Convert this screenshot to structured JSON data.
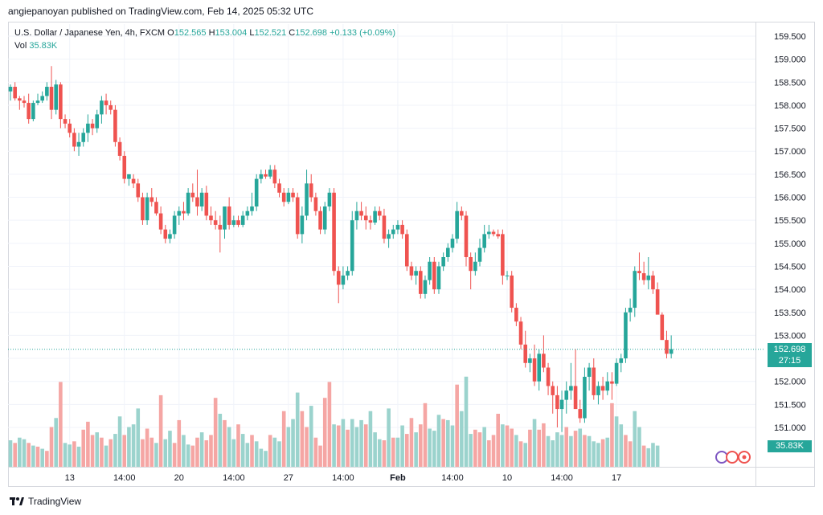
{
  "header": {
    "text": "angiepanoyan published on TradingView.com, Feb 14, 2025 05:32 UTC"
  },
  "legend": {
    "symbol": "U.S. Dollar / Japanese Yen, 4h, FXCM",
    "o_label": "O",
    "o_value": "152.565",
    "h_label": "H",
    "h_value": "153.004",
    "l_label": "L",
    "l_value": "152.521",
    "c_label": "C",
    "c_value": "152.698",
    "change": "+0.133 (+0.09%)",
    "vol_label": "Vol",
    "vol_value": "35.83K"
  },
  "price_tag": {
    "price": "152.698",
    "countdown": "27:15"
  },
  "vol_tag": "35.83K",
  "footer": {
    "brand": "TradingView"
  },
  "colors": {
    "up": "#26a69a",
    "down": "#ef5350",
    "vol_up": "#9bd3cd",
    "vol_down": "#f5a6a4",
    "grid": "#f0f3fa",
    "text": "#131722"
  },
  "chart_data": {
    "type": "candlestick",
    "title": "U.S. Dollar / Japanese Yen, 4h, FXCM",
    "y_axis": {
      "min": 150.5,
      "max": 159.75,
      "ticks": [
        "159.500",
        "159.000",
        "158.500",
        "158.000",
        "157.500",
        "157.000",
        "156.500",
        "156.000",
        "155.500",
        "155.000",
        "154.500",
        "154.000",
        "153.500",
        "153.000",
        "152.500",
        "152.000",
        "151.500",
        "151.000"
      ]
    },
    "x_ticks": [
      {
        "label": "13",
        "index": 13
      },
      {
        "label": "14:00",
        "index": 25
      },
      {
        "label": "20",
        "index": 37
      },
      {
        "label": "14:00",
        "index": 49
      },
      {
        "label": "27",
        "index": 61
      },
      {
        "label": "14:00",
        "index": 73
      },
      {
        "label": "Feb",
        "index": 85
      },
      {
        "label": "14:00",
        "index": 97
      },
      {
        "label": "10",
        "index": 109
      },
      {
        "label": "14:00",
        "index": 121
      },
      {
        "label": "17",
        "index": 133
      }
    ],
    "last_price": 152.698,
    "candles": [
      [
        158.3,
        158.45,
        158.1,
        158.4
      ],
      [
        158.4,
        158.5,
        158.1,
        158.15
      ],
      [
        158.15,
        158.2,
        157.9,
        158.1
      ],
      [
        158.1,
        158.2,
        157.95,
        158.05
      ],
      [
        158.05,
        158.25,
        157.6,
        157.7
      ],
      [
        157.7,
        158.1,
        157.65,
        158.05
      ],
      [
        158.05,
        158.25,
        158.0,
        158.1
      ],
      [
        158.1,
        158.3,
        158.05,
        158.2
      ],
      [
        158.2,
        158.5,
        158.1,
        158.4
      ],
      [
        158.4,
        158.85,
        157.7,
        157.9
      ],
      [
        157.9,
        158.55,
        157.8,
        158.45
      ],
      [
        158.45,
        158.5,
        157.5,
        157.7
      ],
      [
        157.7,
        157.8,
        157.5,
        157.6
      ],
      [
        157.6,
        157.7,
        157.3,
        157.4
      ],
      [
        157.4,
        157.5,
        157.0,
        157.1
      ],
      [
        157.1,
        157.4,
        156.9,
        157.2
      ],
      [
        157.2,
        157.5,
        157.1,
        157.4
      ],
      [
        157.4,
        157.8,
        157.2,
        157.6
      ],
      [
        157.6,
        157.7,
        157.35,
        157.5
      ],
      [
        157.5,
        157.9,
        157.4,
        157.8
      ],
      [
        157.8,
        158.2,
        157.6,
        158.1
      ],
      [
        158.1,
        158.25,
        157.8,
        158.0
      ],
      [
        158.0,
        158.1,
        157.8,
        157.9
      ],
      [
        157.9,
        158.0,
        157.1,
        157.2
      ],
      [
        157.2,
        157.3,
        156.8,
        156.9
      ],
      [
        156.9,
        157.0,
        156.3,
        156.4
      ],
      [
        156.4,
        156.5,
        156.25,
        156.5
      ],
      [
        156.4,
        156.5,
        156.2,
        156.3
      ],
      [
        156.3,
        156.4,
        155.9,
        156.0
      ],
      [
        156.0,
        156.1,
        155.4,
        155.5
      ],
      [
        155.5,
        156.1,
        155.4,
        156.0
      ],
      [
        156.0,
        156.2,
        155.8,
        155.9
      ],
      [
        155.9,
        156.0,
        155.6,
        155.65
      ],
      [
        155.65,
        155.8,
        155.2,
        155.3
      ],
      [
        155.3,
        155.4,
        155.0,
        155.1
      ],
      [
        155.1,
        155.3,
        155.0,
        155.2
      ],
      [
        155.2,
        155.7,
        155.1,
        155.6
      ],
      [
        155.6,
        155.8,
        155.4,
        155.7
      ],
      [
        155.7,
        155.9,
        155.5,
        155.65
      ],
      [
        155.65,
        156.2,
        155.6,
        156.1
      ],
      [
        156.1,
        156.3,
        155.9,
        156.0
      ],
      [
        156.0,
        156.6,
        155.6,
        155.8
      ],
      [
        155.8,
        156.2,
        155.7,
        156.1
      ],
      [
        156.1,
        156.25,
        155.5,
        155.6
      ],
      [
        155.6,
        155.8,
        155.4,
        155.5
      ],
      [
        155.5,
        155.7,
        155.3,
        155.4
      ],
      [
        155.4,
        155.6,
        154.8,
        155.3
      ],
      [
        155.3,
        155.8,
        155.1,
        155.8
      ],
      [
        155.8,
        156.0,
        155.3,
        155.4
      ],
      [
        155.4,
        155.6,
        155.35,
        155.5
      ],
      [
        155.5,
        155.6,
        155.35,
        155.4
      ],
      [
        155.4,
        155.7,
        155.35,
        155.6
      ],
      [
        155.6,
        155.8,
        155.5,
        155.7
      ],
      [
        155.7,
        156.1,
        155.6,
        155.8
      ],
      [
        155.8,
        156.5,
        155.7,
        156.4
      ],
      [
        156.4,
        156.6,
        156.3,
        156.5
      ],
      [
        156.5,
        156.6,
        156.4,
        156.45
      ],
      [
        156.45,
        156.7,
        156.4,
        156.6
      ],
      [
        156.6,
        156.7,
        156.2,
        156.3
      ],
      [
        156.3,
        156.4,
        156.0,
        156.1
      ],
      [
        156.1,
        156.2,
        155.8,
        155.9
      ],
      [
        155.9,
        156.2,
        155.85,
        156.1
      ],
      [
        156.1,
        156.2,
        155.9,
        156.0
      ],
      [
        156.0,
        156.1,
        155.1,
        155.2
      ],
      [
        155.2,
        155.8,
        155.0,
        155.6
      ],
      [
        155.6,
        156.6,
        155.5,
        156.3
      ],
      [
        156.3,
        156.5,
        155.9,
        156.0
      ],
      [
        156.0,
        156.1,
        155.6,
        155.7
      ],
      [
        155.7,
        155.8,
        155.2,
        155.3
      ],
      [
        155.3,
        155.9,
        155.2,
        155.8
      ],
      [
        155.8,
        156.2,
        155.7,
        156.1
      ],
      [
        156.1,
        156.2,
        154.3,
        154.4
      ],
      [
        154.4,
        154.5,
        153.7,
        154.1
      ],
      [
        154.1,
        154.5,
        154.0,
        154.3
      ],
      [
        154.3,
        154.5,
        154.2,
        154.4
      ],
      [
        154.4,
        155.7,
        154.3,
        155.5
      ],
      [
        155.5,
        155.9,
        155.3,
        155.7
      ],
      [
        155.7,
        155.9,
        155.5,
        155.6
      ],
      [
        155.6,
        155.8,
        155.3,
        155.5
      ],
      [
        155.5,
        155.6,
        155.3,
        155.45
      ],
      [
        155.45,
        155.8,
        155.4,
        155.7
      ],
      [
        155.7,
        155.8,
        155.5,
        155.6
      ],
      [
        155.6,
        155.75,
        155.0,
        155.1
      ],
      [
        155.1,
        155.3,
        154.9,
        155.2
      ],
      [
        155.2,
        155.4,
        155.1,
        155.3
      ],
      [
        155.3,
        155.5,
        155.2,
        155.4
      ],
      [
        155.4,
        155.5,
        155.1,
        155.2
      ],
      [
        155.2,
        155.3,
        154.4,
        154.5
      ],
      [
        154.5,
        154.6,
        154.2,
        154.3
      ],
      [
        154.3,
        154.5,
        154.1,
        154.4
      ],
      [
        154.4,
        154.5,
        153.8,
        153.9
      ],
      [
        153.9,
        154.3,
        153.8,
        154.2
      ],
      [
        154.2,
        154.7,
        154.1,
        154.6
      ],
      [
        154.6,
        154.7,
        153.9,
        154.0
      ],
      [
        154.0,
        154.6,
        153.9,
        154.5
      ],
      [
        154.5,
        154.8,
        154.4,
        154.7
      ],
      [
        154.7,
        155.0,
        154.6,
        154.9
      ],
      [
        154.9,
        155.2,
        154.8,
        155.1
      ],
      [
        155.1,
        155.9,
        155.0,
        155.7
      ],
      [
        155.7,
        155.8,
        155.5,
        155.6
      ],
      [
        155.6,
        155.7,
        154.5,
        154.7
      ],
      [
        154.7,
        154.8,
        154.0,
        154.4
      ],
      [
        154.4,
        154.8,
        154.3,
        154.6
      ],
      [
        154.6,
        155.1,
        154.5,
        154.9
      ],
      [
        154.9,
        155.4,
        154.8,
        155.2
      ],
      [
        155.2,
        155.4,
        155.1,
        155.25
      ],
      [
        155.25,
        155.3,
        155.15,
        155.2
      ],
      [
        155.2,
        155.3,
        155.1,
        155.15
      ],
      [
        155.2,
        155.3,
        154.1,
        154.3
      ],
      [
        154.3,
        154.4,
        154.2,
        154.3
      ],
      [
        154.3,
        154.4,
        153.5,
        153.6
      ],
      [
        153.6,
        153.7,
        153.2,
        153.3
      ],
      [
        153.3,
        153.4,
        152.7,
        152.8
      ],
      [
        152.8,
        153.1,
        152.3,
        152.4
      ],
      [
        152.4,
        152.6,
        152.2,
        152.5
      ],
      [
        152.5,
        152.8,
        151.9,
        152.0
      ],
      [
        152.0,
        152.7,
        151.8,
        152.6
      ],
      [
        152.6,
        153.0,
        152.2,
        152.3
      ],
      [
        152.3,
        152.4,
        151.7,
        151.9
      ],
      [
        151.9,
        152.0,
        151.3,
        151.7
      ],
      [
        151.7,
        151.9,
        151.0,
        151.4
      ],
      [
        151.4,
        151.8,
        150.9,
        151.6
      ],
      [
        151.6,
        152.0,
        151.3,
        151.8
      ],
      [
        151.8,
        152.4,
        151.6,
        151.9
      ],
      [
        151.9,
        152.7,
        151.4,
        151.4
      ],
      [
        151.4,
        151.6,
        151.1,
        151.2
      ],
      [
        151.2,
        152.3,
        151.1,
        152.1
      ],
      [
        152.1,
        152.4,
        151.8,
        152.3
      ],
      [
        152.3,
        152.5,
        151.6,
        151.7
      ],
      [
        151.7,
        152.0,
        151.5,
        151.9
      ],
      [
        151.9,
        152.1,
        151.6,
        151.8
      ],
      [
        151.8,
        152.2,
        151.7,
        152.0
      ],
      [
        152.0,
        152.2,
        151.6,
        151.95
      ],
      [
        151.95,
        152.5,
        151.9,
        152.4
      ],
      [
        152.4,
        152.6,
        152.2,
        152.5
      ],
      [
        152.5,
        153.6,
        152.4,
        153.5
      ],
      [
        153.5,
        153.8,
        153.3,
        153.6
      ],
      [
        153.6,
        154.5,
        153.4,
        154.4
      ],
      [
        154.4,
        154.8,
        154.2,
        154.35
      ],
      [
        154.35,
        154.6,
        154.1,
        154.2
      ],
      [
        154.2,
        154.7,
        154.0,
        154.3
      ],
      [
        154.3,
        154.4,
        153.9,
        154.0
      ],
      [
        154.0,
        154.15,
        153.5,
        153.45
      ],
      [
        153.45,
        153.5,
        152.9,
        152.9
      ],
      [
        152.9,
        153.1,
        152.5,
        152.6
      ],
      [
        152.6,
        153.0,
        152.5,
        152.7
      ]
    ],
    "volumes": [
      [
        0.5,
        1
      ],
      [
        0.45,
        0
      ],
      [
        0.55,
        1
      ],
      [
        0.52,
        1
      ],
      [
        0.45,
        0
      ],
      [
        0.4,
        1
      ],
      [
        0.38,
        0
      ],
      [
        0.34,
        1
      ],
      [
        0.3,
        0
      ],
      [
        0.75,
        0
      ],
      [
        0.92,
        1
      ],
      [
        1.6,
        0
      ],
      [
        0.45,
        1
      ],
      [
        0.42,
        1
      ],
      [
        0.48,
        0
      ],
      [
        0.38,
        1
      ],
      [
        0.7,
        0
      ],
      [
        0.85,
        0
      ],
      [
        0.6,
        0
      ],
      [
        0.65,
        1
      ],
      [
        0.55,
        0
      ],
      [
        0.4,
        1
      ],
      [
        0.52,
        0
      ],
      [
        0.62,
        1
      ],
      [
        0.95,
        1
      ],
      [
        0.6,
        0
      ],
      [
        0.75,
        1
      ],
      [
        0.8,
        1
      ],
      [
        1.1,
        1
      ],
      [
        0.52,
        0
      ],
      [
        0.72,
        0
      ],
      [
        0.55,
        0
      ],
      [
        0.45,
        1
      ],
      [
        1.35,
        0
      ],
      [
        0.52,
        1
      ],
      [
        0.68,
        1
      ],
      [
        0.45,
        0
      ],
      [
        0.88,
        0
      ],
      [
        0.6,
        1
      ],
      [
        0.42,
        1
      ],
      [
        0.4,
        0
      ],
      [
        0.55,
        0
      ],
      [
        0.65,
        1
      ],
      [
        0.5,
        0
      ],
      [
        0.6,
        0
      ],
      [
        1.3,
        0
      ],
      [
        1.0,
        1
      ],
      [
        0.88,
        0
      ],
      [
        0.75,
        1
      ],
      [
        0.52,
        1
      ],
      [
        0.8,
        0
      ],
      [
        0.62,
        1
      ],
      [
        0.45,
        1
      ],
      [
        0.6,
        0
      ],
      [
        0.48,
        1
      ],
      [
        0.34,
        1
      ],
      [
        0.3,
        1
      ],
      [
        0.6,
        0
      ],
      [
        0.55,
        1
      ],
      [
        0.48,
        1
      ],
      [
        1.05,
        0
      ],
      [
        0.75,
        1
      ],
      [
        0.9,
        1
      ],
      [
        1.4,
        1
      ],
      [
        1.05,
        0
      ],
      [
        0.75,
        0
      ],
      [
        1.15,
        1
      ],
      [
        0.55,
        0
      ],
      [
        0.4,
        0
      ],
      [
        1.3,
        0
      ],
      [
        1.6,
        0
      ],
      [
        0.8,
        1
      ],
      [
        0.78,
        0
      ],
      [
        0.9,
        1
      ],
      [
        0.7,
        0
      ],
      [
        0.9,
        1
      ],
      [
        0.75,
        1
      ],
      [
        0.88,
        1
      ],
      [
        0.8,
        0
      ],
      [
        1.05,
        1
      ],
      [
        0.65,
        1
      ],
      [
        0.52,
        1
      ],
      [
        0.5,
        0
      ],
      [
        1.1,
        1
      ],
      [
        0.55,
        0
      ],
      [
        0.55,
        1
      ],
      [
        0.78,
        1
      ],
      [
        0.62,
        0
      ],
      [
        0.92,
        0
      ],
      [
        0.65,
        1
      ],
      [
        0.8,
        0
      ],
      [
        1.2,
        0
      ],
      [
        0.72,
        1
      ],
      [
        0.68,
        1
      ],
      [
        0.98,
        1
      ],
      [
        0.9,
        0
      ],
      [
        0.88,
        1
      ],
      [
        0.78,
        1
      ],
      [
        1.55,
        0
      ],
      [
        1.05,
        1
      ],
      [
        1.7,
        1
      ],
      [
        0.62,
        1
      ],
      [
        0.7,
        0
      ],
      [
        0.65,
        0
      ],
      [
        0.75,
        1
      ],
      [
        0.5,
        0
      ],
      [
        0.6,
        0
      ],
      [
        1.0,
        0
      ],
      [
        0.8,
        1
      ],
      [
        0.78,
        0
      ],
      [
        0.72,
        0
      ],
      [
        0.6,
        1
      ],
      [
        0.48,
        0
      ],
      [
        0.45,
        1
      ],
      [
        0.7,
        0
      ],
      [
        0.9,
        1
      ],
      [
        0.7,
        0
      ],
      [
        0.82,
        0
      ],
      [
        0.58,
        1
      ],
      [
        0.5,
        1
      ],
      [
        0.65,
        1
      ],
      [
        0.6,
        1
      ],
      [
        0.75,
        0
      ],
      [
        0.58,
        1
      ],
      [
        0.68,
        0
      ],
      [
        0.72,
        1
      ],
      [
        0.6,
        0
      ],
      [
        0.58,
        1
      ],
      [
        0.48,
        1
      ],
      [
        0.45,
        1
      ],
      [
        0.52,
        0
      ],
      [
        0.55,
        1
      ],
      [
        1.2,
        0
      ],
      [
        0.95,
        1
      ],
      [
        0.8,
        1
      ],
      [
        0.6,
        0
      ],
      [
        0.48,
        0
      ],
      [
        1.05,
        1
      ],
      [
        0.75,
        1
      ],
      [
        0.4,
        0
      ],
      [
        0.35,
        1
      ],
      [
        0.45,
        1
      ],
      [
        0.4,
        1
      ]
    ]
  }
}
